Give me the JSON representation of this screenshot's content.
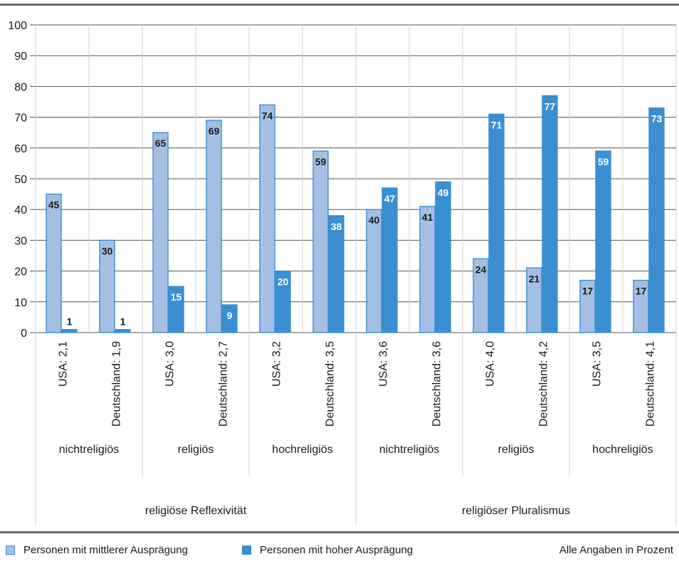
{
  "chart_data": {
    "type": "bar",
    "categories": [
      "USA: 2,1",
      "Deutschland: 1,9",
      "USA: 3,0",
      "Deutschland: 2,7",
      "USA: 3,2",
      "Deutschland: 3,5",
      "USA: 3,6",
      "Deutschland: 3,6",
      "USA: 4,0",
      "Deutschland: 4,2",
      "USA: 3,5",
      "Deutschland: 4,1"
    ],
    "groups_level1": [
      "nichtreligiös",
      "religiös",
      "hochreligiös",
      "nichtreligiös",
      "religiös",
      "hochreligiös"
    ],
    "groups_level2": [
      "religiöse Reflexivität",
      "religiöser Pluralismus"
    ],
    "series": [
      {
        "name": "Personen mit mittlerer Ausprägung",
        "color": "#a4bfe3",
        "values": [
          45,
          30,
          65,
          69,
          74,
          59,
          40,
          41,
          24,
          21,
          17,
          17
        ]
      },
      {
        "name": "Personen mit hoher Ausprägung",
        "color": "#3a8fd3",
        "values": [
          1,
          1,
          15,
          9,
          20,
          38,
          47,
          49,
          71,
          77,
          59,
          73
        ]
      }
    ],
    "y_ticks": [
      "0",
      "10",
      "20",
      "30",
      "40",
      "50",
      "60",
      "70",
      "80",
      "90",
      "100"
    ],
    "ylim": [
      0,
      100
    ],
    "grid": true,
    "legend_position": "bottom-left"
  },
  "note": "Alle Angaben in Prozent"
}
